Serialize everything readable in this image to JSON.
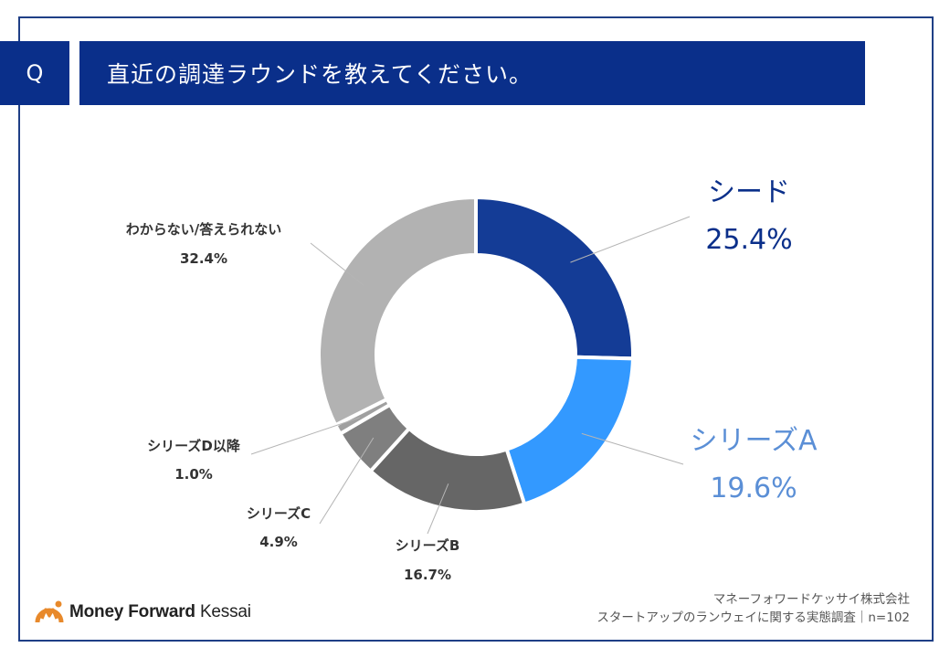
{
  "header": {
    "q_label": "Q",
    "question": "直近の調達ラウンドを教えてください。"
  },
  "chart_data": {
    "type": "donut",
    "title": "直近の調達ラウンドを教えてください。",
    "categories": [
      "シード",
      "シリーズA",
      "シリーズB",
      "シリーズC",
      "シリーズD以降",
      "わからない/答えられない"
    ],
    "values": [
      25.4,
      19.6,
      16.7,
      4.9,
      1.0,
      32.4
    ],
    "value_labels": [
      "25.4%",
      "19.6%",
      "16.7%",
      "4.9%",
      "1.0%",
      "32.4%"
    ],
    "colors": [
      "#143c96",
      "#3399ff",
      "#666666",
      "#7f7f7f",
      "#a0a0a0",
      "#b2b2b2"
    ],
    "unit": "%"
  },
  "footer": {
    "logo_money": "Money",
    "logo_forward": "Forward",
    "logo_kessai": "Kessai",
    "source_line1": "マネーフォワードケッサイ株式会社",
    "source_line2": "スタートアップのランウェイに関する実態調査｜n=102"
  }
}
